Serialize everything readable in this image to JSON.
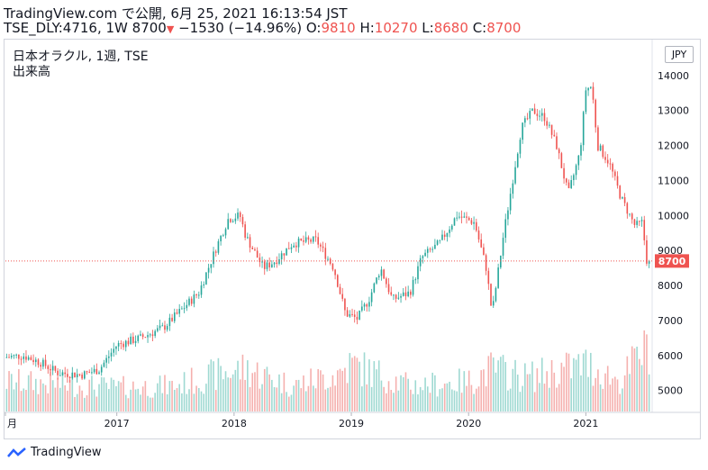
{
  "header": {
    "line1": "TradingView.com で公開, 6月 25, 2021 16:13:54 JST",
    "ticker": "TSE_DLY:4716, 1W",
    "last": "8700",
    "change": "−1530 (−14.96%)",
    "o_label": "O:",
    "o_val": "9810",
    "h_label": "H:",
    "h_val": "10270",
    "l_label": "L:",
    "l_val": "8680",
    "c_label": "C:",
    "c_val": "8700"
  },
  "legend": {
    "symbol": "日本オラクル, 1週, TSE",
    "volume": "出来高"
  },
  "currency_button": "JPY",
  "footer": {
    "brand": "TradingView"
  },
  "colors": {
    "up": "#26a69a",
    "down": "#ef5350",
    "up_vol": "#9fd9d2",
    "down_vol": "#f5b0ae",
    "last_line": "#ef5350"
  },
  "chart_data": {
    "type": "candlestick",
    "interval": "1W",
    "last_price": "8700",
    "y_ticks": [
      "5000",
      "6000",
      "7000",
      "8000",
      "9000",
      "10000",
      "11000",
      "12000",
      "13000",
      "14000"
    ],
    "ylim": [
      4400,
      15000
    ],
    "x_ticks": [
      {
        "label": "月",
        "date": 2016.05
      },
      {
        "label": "2017",
        "date": 2017.0
      },
      {
        "label": "2018",
        "date": 2018.0
      },
      {
        "label": "2019",
        "date": 2019.0
      },
      {
        "label": "2020",
        "date": 2020.0
      },
      {
        "label": "2021",
        "date": 2021.0
      }
    ],
    "xlim": [
      2016.05,
      2021.55
    ],
    "price_path": [
      [
        2016.05,
        5950
      ],
      [
        2016.2,
        6000
      ],
      [
        2016.35,
        5800
      ],
      [
        2016.5,
        5500
      ],
      [
        2016.7,
        5450
      ],
      [
        2016.85,
        5600
      ],
      [
        2017.0,
        6300
      ],
      [
        2017.2,
        6500
      ],
      [
        2017.4,
        6800
      ],
      [
        2017.55,
        7300
      ],
      [
        2017.7,
        7800
      ],
      [
        2017.85,
        9100
      ],
      [
        2017.95,
        9900
      ],
      [
        2018.05,
        10000
      ],
      [
        2018.1,
        9400
      ],
      [
        2018.25,
        8500
      ],
      [
        2018.35,
        8700
      ],
      [
        2018.5,
        9200
      ],
      [
        2018.7,
        9300
      ],
      [
        2018.85,
        8500
      ],
      [
        2018.95,
        7200
      ],
      [
        2019.05,
        7050
      ],
      [
        2019.15,
        7600
      ],
      [
        2019.25,
        8500
      ],
      [
        2019.35,
        7600
      ],
      [
        2019.5,
        7800
      ],
      [
        2019.6,
        8800
      ],
      [
        2019.75,
        9200
      ],
      [
        2019.9,
        10000
      ],
      [
        2020.05,
        9800
      ],
      [
        2020.15,
        8500
      ],
      [
        2020.2,
        7200
      ],
      [
        2020.3,
        9500
      ],
      [
        2020.45,
        12500
      ],
      [
        2020.55,
        13000
      ],
      [
        2020.65,
        12800
      ],
      [
        2020.75,
        12000
      ],
      [
        2020.85,
        10600
      ],
      [
        2020.95,
        11800
      ],
      [
        2021.0,
        13600
      ],
      [
        2021.05,
        13700
      ],
      [
        2021.1,
        12000
      ],
      [
        2021.2,
        11500
      ],
      [
        2021.3,
        10500
      ],
      [
        2021.42,
        9700
      ],
      [
        2021.48,
        9800
      ],
      [
        2021.52,
        8700
      ]
    ],
    "volume_path": [
      [
        2016.05,
        0.35
      ],
      [
        2016.5,
        0.32
      ],
      [
        2017.0,
        0.28
      ],
      [
        2017.5,
        0.3
      ],
      [
        2017.9,
        0.45
      ],
      [
        2018.1,
        0.5
      ],
      [
        2018.5,
        0.3
      ],
      [
        2018.9,
        0.45
      ],
      [
        2019.0,
        0.55
      ],
      [
        2019.5,
        0.3
      ],
      [
        2020.0,
        0.35
      ],
      [
        2020.2,
        0.5
      ],
      [
        2020.5,
        0.4
      ],
      [
        2021.0,
        0.55
      ],
      [
        2021.3,
        0.35
      ],
      [
        2021.52,
        0.8
      ]
    ]
  }
}
